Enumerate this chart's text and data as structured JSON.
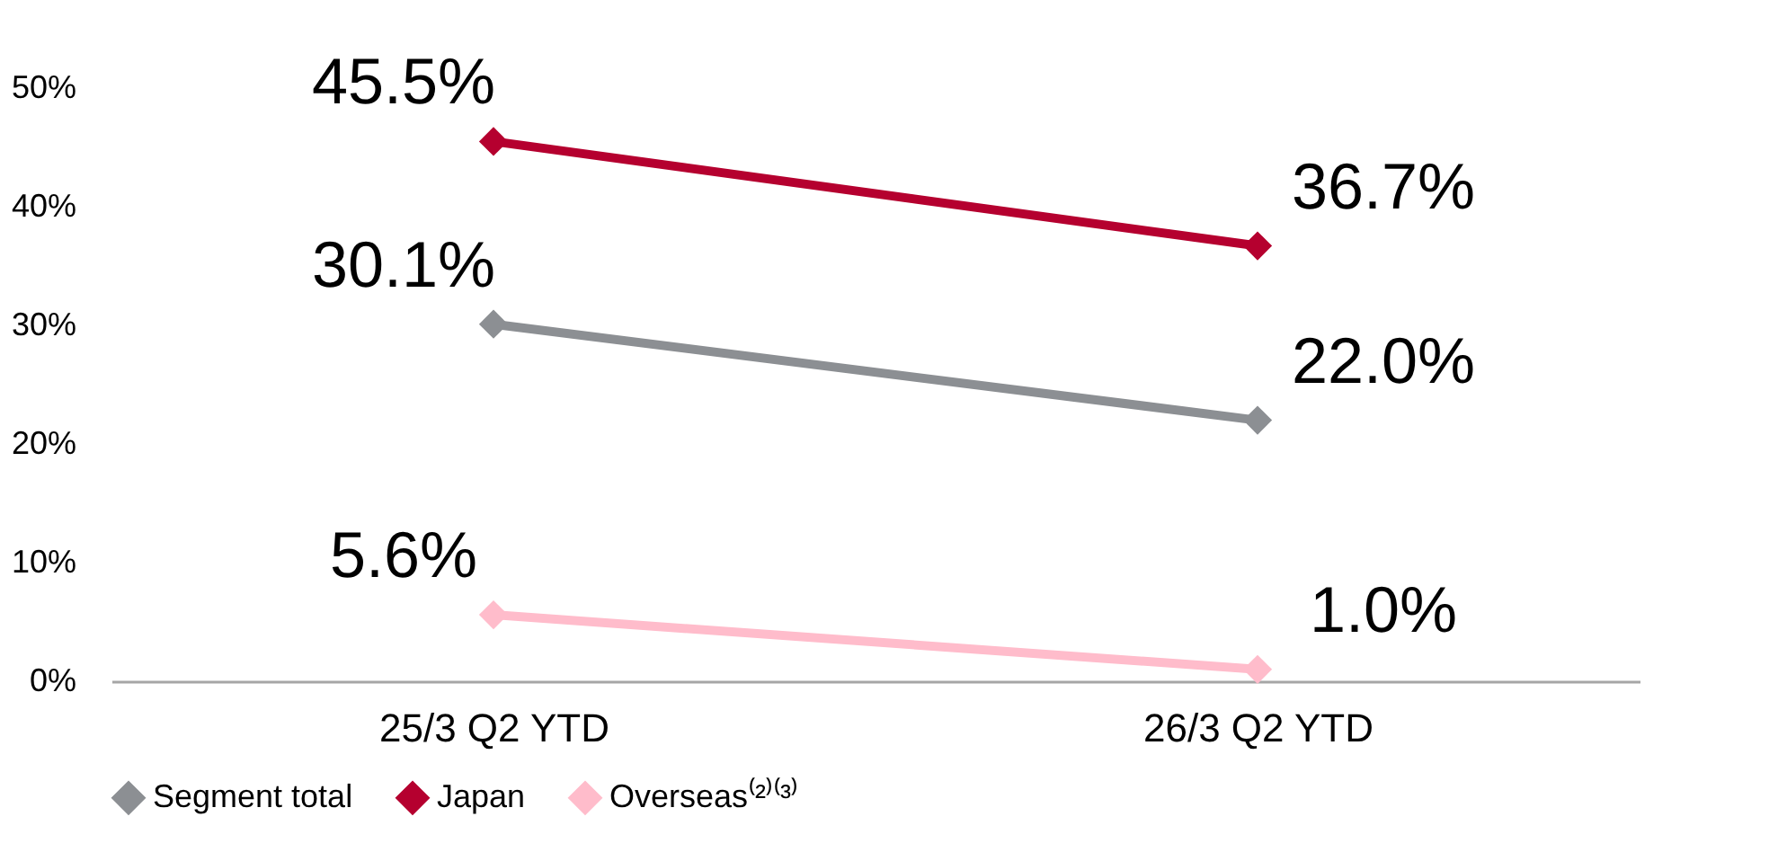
{
  "chart_data": {
    "type": "line",
    "categories": [
      "25/3 Q2 YTD",
      "26/3 Q2 YTD"
    ],
    "series": [
      {
        "name": "Segment total",
        "color": "#8c8f93",
        "values": [
          30.1,
          22.0
        ],
        "value_labels": [
          "30.1%",
          "22.0%"
        ]
      },
      {
        "name": "Japan",
        "color": "#b5002f",
        "values": [
          45.5,
          36.7
        ],
        "value_labels": [
          "45.5%",
          "36.7%"
        ]
      },
      {
        "name": "Overseas⁽²⁾⁽³⁾",
        "color": "#ffbccb",
        "values": [
          5.6,
          1.0
        ],
        "value_labels": [
          "5.6%",
          "1.0%"
        ]
      }
    ],
    "ylim": [
      0,
      50
    ],
    "yticks": [
      {
        "value": 0,
        "label": "0%"
      },
      {
        "value": 10,
        "label": "10%"
      },
      {
        "value": 20,
        "label": "20%"
      },
      {
        "value": 30,
        "label": "30%"
      },
      {
        "value": 40,
        "label": "40%"
      },
      {
        "value": 50,
        "label": "50%"
      }
    ],
    "grid": false,
    "legend": "bottom",
    "marker": "diamond",
    "line_style": "solid"
  }
}
